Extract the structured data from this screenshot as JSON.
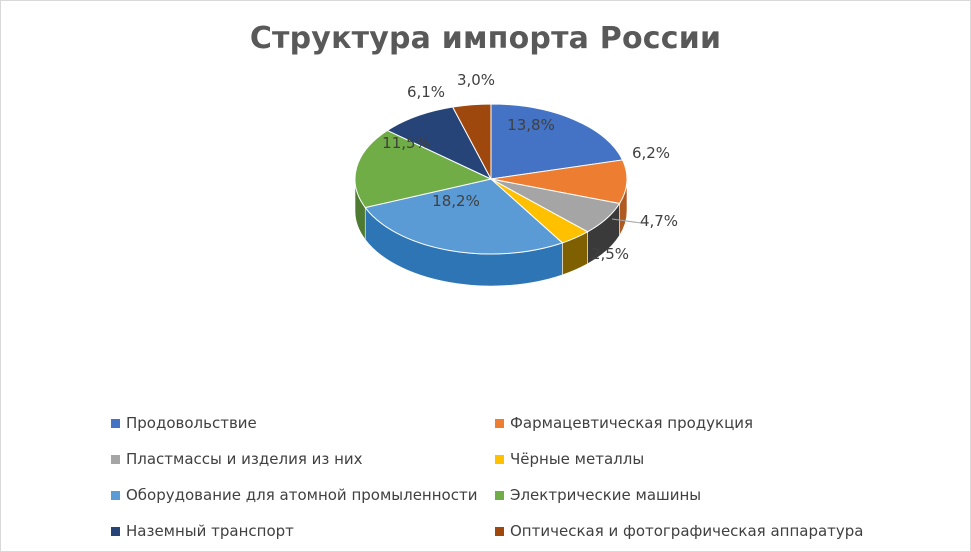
{
  "chart_data": {
    "type": "pie",
    "title": "Структура импорта России",
    "legend_position": "bottom",
    "slices": [
      {
        "label": "Продовольствие",
        "value": 13.8,
        "display": "13,8%",
        "color": "#4472c4",
        "side": "#2f5597"
      },
      {
        "label": "Фармацевтическая продукция",
        "value": 6.2,
        "display": "6,2%",
        "color": "#ed7d31",
        "side": "#ae5a21"
      },
      {
        "label": "Пластмассы и изделия из них",
        "value": 4.7,
        "display": "4,7%",
        "color": "#a5a5a5",
        "side": "#3a3a3a"
      },
      {
        "label": "Чёрные металлы",
        "value": 2.5,
        "display": "2,5%",
        "color": "#ffc000",
        "side": "#7f6000"
      },
      {
        "label": "Оборудование для атомной промыленности",
        "value": 18.2,
        "display": "18,2%",
        "color": "#5b9bd5",
        "side": "#2e75b6"
      },
      {
        "label": "Электрические машины",
        "value": 11.5,
        "display": "11,5%",
        "color": "#70ad47",
        "side": "#4e7a31"
      },
      {
        "label": "Наземный транспорт",
        "value": 6.1,
        "display": "6,1%",
        "color": "#264478",
        "side": "#1a2f55"
      },
      {
        "label": "Оптическая и фотографическая аппаратура",
        "value": 3.0,
        "display": "3,0%",
        "color": "#9e480e",
        "side": "#6e320a"
      }
    ]
  }
}
